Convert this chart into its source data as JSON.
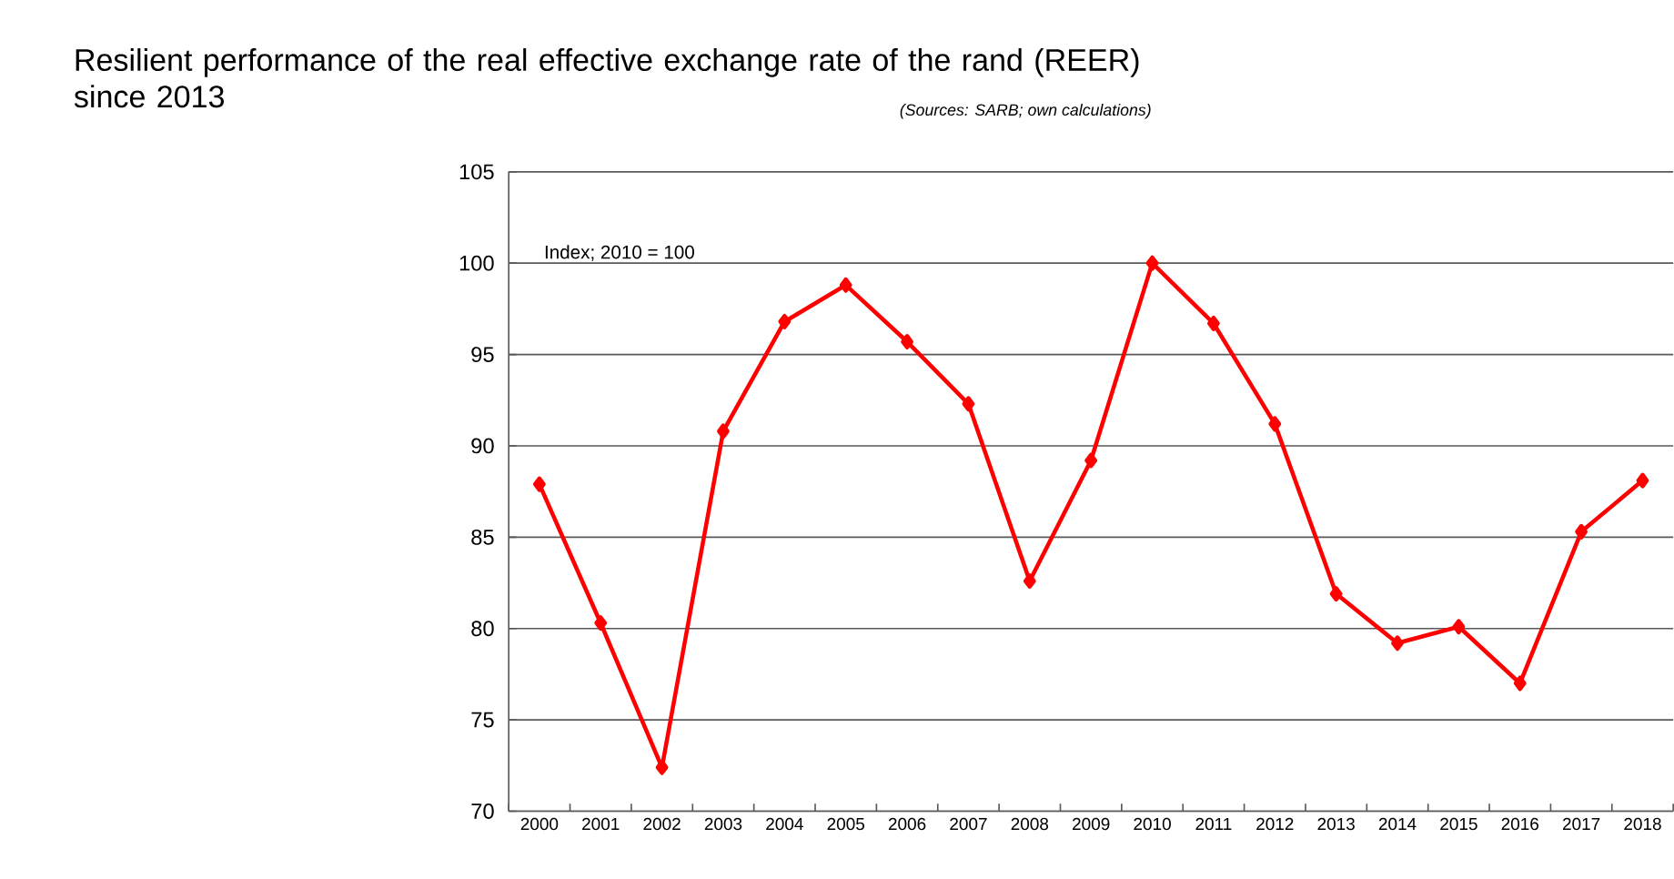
{
  "chart_data": {
    "type": "line",
    "title": "Resilient performance of the real effective exchange rate of the rand (REER) since 2013",
    "annotations": [
      "(Sources: SARB; own calculations)",
      "Index; 2010 = 100"
    ],
    "categories": [
      "2000",
      "2001",
      "2002",
      "2003",
      "2004",
      "2005",
      "2006",
      "2007",
      "2008",
      "2009",
      "2010",
      "2011",
      "2012",
      "2013",
      "2014",
      "2015",
      "2016",
      "2017",
      "2018"
    ],
    "series": [
      {
        "color": "#ff0000",
        "values": [
          87.9,
          80.3,
          72.4,
          90.8,
          96.8,
          98.8,
          95.7,
          92.3,
          82.6,
          89.2,
          100,
          96.7,
          91.2,
          81.9,
          79.2,
          80.1,
          77.0,
          85.3,
          88.1
        ]
      }
    ],
    "ylim": [
      70,
      105
    ],
    "yticks": [
      70,
      75,
      80,
      85,
      90,
      95,
      100,
      105
    ],
    "grid": "y",
    "marker": "diamond",
    "line_style": "solid"
  }
}
